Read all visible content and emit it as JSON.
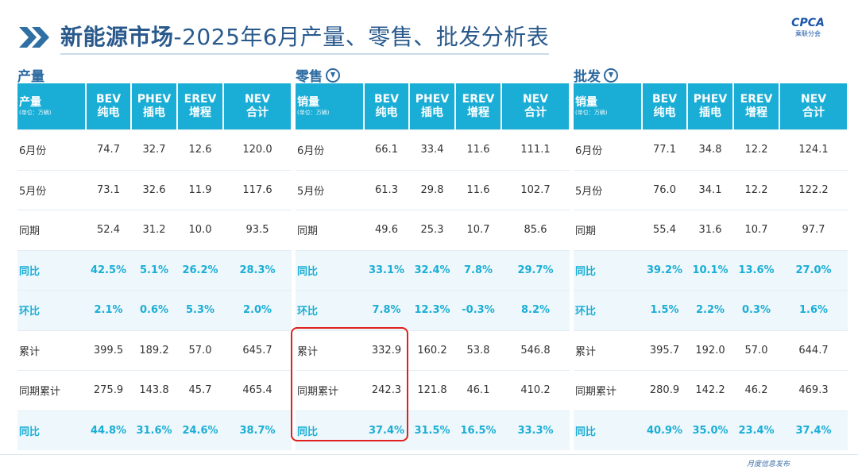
{
  "title_bold": "新能源市场",
  "title_rest": "-2025年6月产量、零售、批发分析表",
  "logo": {
    "mark": "CPCA",
    "sub": "乘联分会"
  },
  "footer": "月度信息发布",
  "sections": [
    {
      "label": "产量",
      "has_icon": false,
      "header": {
        "first": "产量",
        "first_sub": "(单位：万辆)",
        "cols": [
          [
            "BEV",
            "纯电"
          ],
          [
            "PHEV",
            "插电"
          ],
          [
            "EREV",
            "增程"
          ],
          [
            "NEV",
            "合计"
          ]
        ]
      },
      "rows": [
        {
          "label": "6月份",
          "values": [
            "74.7",
            "32.7",
            "12.6",
            "120.0"
          ],
          "pct": false
        },
        {
          "label": "5月份",
          "values": [
            "73.1",
            "32.6",
            "11.9",
            "117.6"
          ],
          "pct": false
        },
        {
          "label": "同期",
          "values": [
            "52.4",
            "31.2",
            "10.0",
            "93.5"
          ],
          "pct": false
        },
        {
          "label": "同比",
          "values": [
            "42.5%",
            "5.1%",
            "26.2%",
            "28.3%"
          ],
          "pct": true
        },
        {
          "label": "环比",
          "values": [
            "2.1%",
            "0.6%",
            "5.3%",
            "2.0%"
          ],
          "pct": true
        },
        {
          "label": "累计",
          "values": [
            "399.5",
            "189.2",
            "57.0",
            "645.7"
          ],
          "pct": false
        },
        {
          "label": "同期累计",
          "values": [
            "275.9",
            "143.8",
            "45.7",
            "465.4"
          ],
          "pct": false
        },
        {
          "label": "同比",
          "values": [
            "44.8%",
            "31.6%",
            "24.6%",
            "38.7%"
          ],
          "pct": true
        }
      ]
    },
    {
      "label": "零售",
      "has_icon": true,
      "header": {
        "first": "销量",
        "first_sub": "(单位：万辆)",
        "cols": [
          [
            "BEV",
            "纯电"
          ],
          [
            "PHEV",
            "插电"
          ],
          [
            "EREV",
            "增程"
          ],
          [
            "NEV",
            "合计"
          ]
        ]
      },
      "rows": [
        {
          "label": "6月份",
          "values": [
            "66.1",
            "33.4",
            "11.6",
            "111.1"
          ],
          "pct": false
        },
        {
          "label": "5月份",
          "values": [
            "61.3",
            "29.8",
            "11.6",
            "102.7"
          ],
          "pct": false
        },
        {
          "label": "同期",
          "values": [
            "49.6",
            "25.3",
            "10.7",
            "85.6"
          ],
          "pct": false
        },
        {
          "label": "同比",
          "values": [
            "33.1%",
            "32.4%",
            "7.8%",
            "29.7%"
          ],
          "pct": true
        },
        {
          "label": "环比",
          "values": [
            "7.8%",
            "12.3%",
            "-0.3%",
            "8.2%"
          ],
          "pct": true
        },
        {
          "label": "累计",
          "values": [
            "332.9",
            "160.2",
            "53.8",
            "546.8"
          ],
          "pct": false
        },
        {
          "label": "同期累计",
          "values": [
            "242.3",
            "121.8",
            "46.1",
            "410.2"
          ],
          "pct": false
        },
        {
          "label": "同比",
          "values": [
            "37.4%",
            "31.5%",
            "16.5%",
            "33.3%"
          ],
          "pct": true
        }
      ]
    },
    {
      "label": "批发",
      "has_icon": true,
      "header": {
        "first": "销量",
        "first_sub": "(单位：万辆)",
        "cols": [
          [
            "BEV",
            "纯电"
          ],
          [
            "PHEV",
            "插电"
          ],
          [
            "EREV",
            "增程"
          ],
          [
            "NEV",
            "合计"
          ]
        ]
      },
      "rows": [
        {
          "label": "6月份",
          "values": [
            "77.1",
            "34.8",
            "12.2",
            "124.1"
          ],
          "pct": false
        },
        {
          "label": "5月份",
          "values": [
            "76.0",
            "34.1",
            "12.2",
            "122.2"
          ],
          "pct": false
        },
        {
          "label": "同期",
          "values": [
            "55.4",
            "31.6",
            "10.7",
            "97.7"
          ],
          "pct": false
        },
        {
          "label": "同比",
          "values": [
            "39.2%",
            "10.1%",
            "13.6%",
            "27.0%"
          ],
          "pct": true
        },
        {
          "label": "环比",
          "values": [
            "1.5%",
            "2.2%",
            "0.3%",
            "1.6%"
          ],
          "pct": true
        },
        {
          "label": "累计",
          "values": [
            "395.7",
            "192.0",
            "57.0",
            "644.7"
          ],
          "pct": false
        },
        {
          "label": "同期累计",
          "values": [
            "280.9",
            "142.2",
            "46.2",
            "469.3"
          ],
          "pct": false
        },
        {
          "label": "同比",
          "values": [
            "40.9%",
            "35.0%",
            "23.4%",
            "37.4%"
          ],
          "pct": true
        }
      ]
    }
  ]
}
